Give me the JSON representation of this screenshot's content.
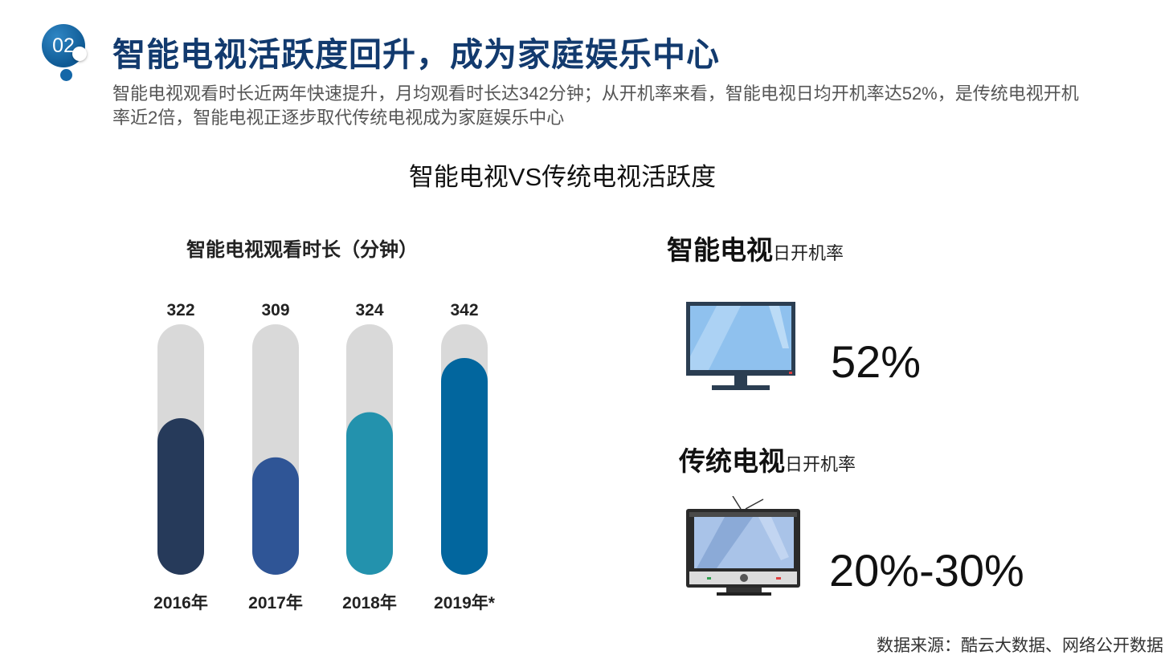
{
  "badge": {
    "number": "02"
  },
  "header": {
    "title": "智能电视活跃度回升，成为家庭娱乐中心",
    "subtitle": "智能电视观看时长近两年快速提升，月均观看时长达342分钟；从开机率来看，智能电视日均开机率达52%，是传统电视开机率近2倍，智能电视正逐步取代传统电视成为家庭娱乐中心"
  },
  "section_title": "智能电视VS传统电视活跃度",
  "chart_data": {
    "type": "bar",
    "title": "智能电视观看时长（分钟）",
    "categories": [
      "2016年",
      "2017年",
      "2018年",
      "2019年*"
    ],
    "values": [
      322,
      309,
      324,
      342
    ],
    "colors": [
      "#263a5a",
      "#2f5596",
      "#2392ad",
      "#02669e"
    ],
    "track_color": "#d9d9d9",
    "ylim": [
      270,
      350
    ]
  },
  "smart_tv": {
    "name": "智能电视",
    "metric": "日开机率",
    "value": "52%",
    "icon": "monitor-icon"
  },
  "traditional_tv": {
    "name": "传统电视",
    "metric": "日开机率",
    "value": "20%-30%",
    "icon": "crt-tv-icon"
  },
  "source": "数据来源：酷云大数据、网络公开数据"
}
